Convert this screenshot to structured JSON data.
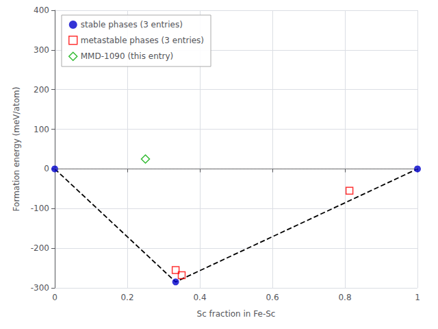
{
  "chart_data": {
    "type": "scatter",
    "xlabel": "Sc fraction in Fe-Sc",
    "ylabel": "Formation energy (meV/atom)",
    "xlim": [
      0.0,
      1.0
    ],
    "ylim": [
      -300,
      400
    ],
    "xticks": [
      0.0,
      0.2,
      0.4,
      0.6,
      0.8,
      1.0
    ],
    "yticks": [
      -300,
      -200,
      -100,
      0,
      100,
      200,
      300,
      400
    ],
    "legend": "upper left",
    "series": [
      {
        "type": "hline",
        "color": "#808080",
        "line_style": "dotted",
        "values": [
          0.0
        ]
      },
      {
        "type": "line",
        "color": "#000000",
        "line_style": "dashed",
        "x": [
          0.0,
          0.3333,
          1.0
        ],
        "values": [
          0.0,
          -285.0,
          0.0
        ]
      },
      {
        "type": "scatter",
        "name": "stable phases (3 entries)",
        "color": "#0000cc",
        "marker": "circle",
        "x": [
          0.0,
          0.3333,
          1.0
        ],
        "values": [
          0.0,
          -285.0,
          0.0
        ]
      },
      {
        "type": "scatter",
        "name": "metastable phases (3 entries)",
        "color": "#ff0000",
        "marker": "square-open",
        "x": [
          0.3333,
          0.35,
          0.8125
        ],
        "values": [
          -255.0,
          -268.0,
          -55.0
        ]
      },
      {
        "type": "scatter",
        "name": "MMD-1090 (this entry)",
        "color": "#00aa00",
        "marker": "diamond-open",
        "x": [
          0.25
        ],
        "values": [
          25.0
        ]
      }
    ]
  }
}
